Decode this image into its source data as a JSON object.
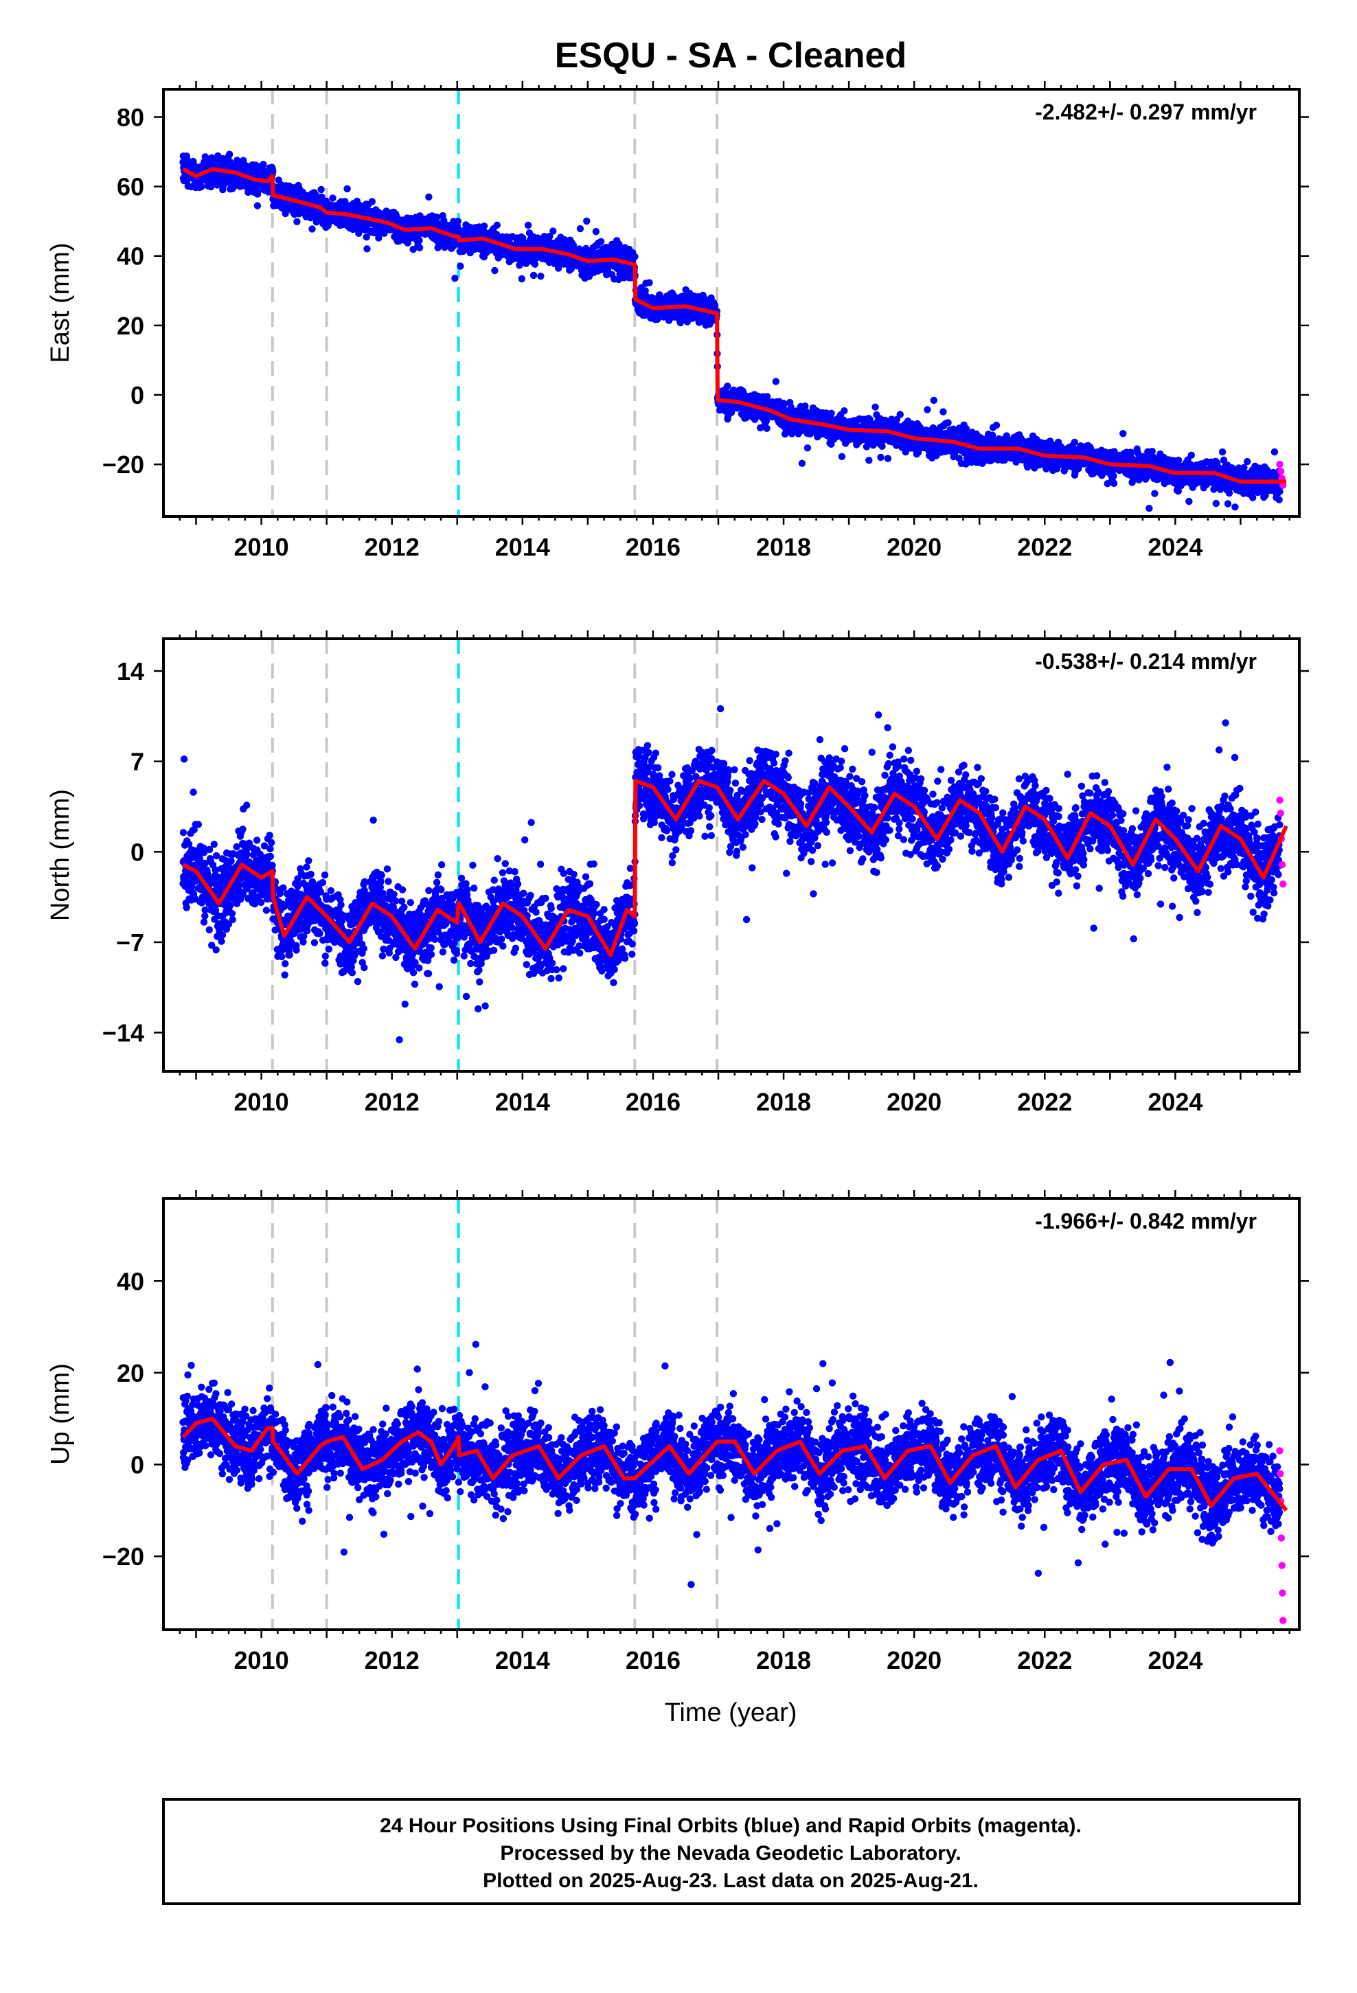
{
  "title": "ESQU  - SA - Cleaned",
  "xlabel": "Time (year)",
  "footer": {
    "line1": "24 Hour Positions Using Final Orbits (blue) and Rapid Orbits (magenta).",
    "line2": "Processed by the Nevada Geodetic Laboratory.",
    "line3": "Plotted on 2025-Aug-23. Last data on 2025-Aug-21."
  },
  "colors": {
    "final_orbits": "#0000ff",
    "rapid_orbits": "#ff00ff",
    "model": "#ff0000",
    "equipment_change": "#c8c8c8",
    "earthquake": "#00e5ee"
  },
  "chart_data": [
    {
      "type": "scatter",
      "ylabel": "East (mm)",
      "rate_label": "-2.482+/- 0.297 mm/yr",
      "xlim": [
        2008.5,
        2025.9
      ],
      "ylim": [
        -35,
        88
      ],
      "xticks": [
        "2010",
        "2012",
        "2014",
        "2016",
        "2018",
        "2020",
        "2022",
        "2024"
      ],
      "yticks": [
        80,
        60,
        40,
        20,
        0,
        -20
      ],
      "grid": false,
      "vlines_gray": [
        2010.17,
        2011.0,
        2015.72,
        2016.98
      ],
      "vlines_cyan": [
        2013.02
      ],
      "model": [
        [
          2008.8,
          65
        ],
        [
          2009.0,
          63
        ],
        [
          2009.25,
          65
        ],
        [
          2009.6,
          64
        ],
        [
          2009.9,
          62
        ],
        [
          2010.1,
          61.5
        ],
        [
          2010.17,
          63
        ],
        [
          2010.18,
          57.5
        ],
        [
          2010.5,
          56
        ],
        [
          2010.9,
          54
        ],
        [
          2011.0,
          52.5
        ],
        [
          2011.3,
          52
        ],
        [
          2011.7,
          50.5
        ],
        [
          2011.95,
          49.5
        ],
        [
          2012.2,
          47.5
        ],
        [
          2012.6,
          48
        ],
        [
          2012.9,
          46
        ],
        [
          2013.02,
          45.5
        ],
        [
          2013.03,
          44.5
        ],
        [
          2013.4,
          45
        ],
        [
          2013.9,
          42
        ],
        [
          2014.3,
          42
        ],
        [
          2014.7,
          40.5
        ],
        [
          2015.0,
          38.5
        ],
        [
          2015.4,
          39
        ],
        [
          2015.72,
          37.5
        ],
        [
          2015.73,
          27.5
        ],
        [
          2016.0,
          25
        ],
        [
          2016.5,
          25.5
        ],
        [
          2016.98,
          23.5
        ],
        [
          2016.99,
          -1.5
        ],
        [
          2017.3,
          -2
        ],
        [
          2017.8,
          -4.5
        ],
        [
          2018.1,
          -7
        ],
        [
          2018.6,
          -8.5
        ],
        [
          2019.0,
          -10
        ],
        [
          2019.6,
          -10.5
        ],
        [
          2020.0,
          -12.5
        ],
        [
          2020.6,
          -13.5
        ],
        [
          2021.0,
          -15.5
        ],
        [
          2021.6,
          -15.5
        ],
        [
          2022.0,
          -17.5
        ],
        [
          2022.6,
          -18
        ],
        [
          2023.0,
          -20
        ],
        [
          2023.6,
          -20.5
        ],
        [
          2024.0,
          -22.5
        ],
        [
          2024.6,
          -22.5
        ],
        [
          2025.0,
          -25
        ],
        [
          2025.7,
          -25
        ]
      ],
      "rapid_range": [
        2025.6,
        2025.65
      ],
      "rapid_values": [
        -20,
        -22,
        -24,
        -26
      ]
    },
    {
      "type": "scatter",
      "ylabel": "North (mm)",
      "rate_label": "-0.538+/- 0.214 mm/yr",
      "xlim": [
        2008.5,
        2025.9
      ],
      "ylim": [
        -17,
        16.5
      ],
      "xticks": [
        "2010",
        "2012",
        "2014",
        "2016",
        "2018",
        "2020",
        "2022",
        "2024"
      ],
      "yticks": [
        14,
        7,
        0,
        -7,
        -14
      ],
      "grid": false,
      "vlines_gray": [
        2010.17,
        2011.0,
        2015.72,
        2016.98
      ],
      "vlines_cyan": [
        2013.02
      ],
      "model": [
        [
          2008.8,
          -1
        ],
        [
          2009.0,
          -1.5
        ],
        [
          2009.35,
          -4
        ],
        [
          2009.7,
          -1
        ],
        [
          2010.0,
          -2
        ],
        [
          2010.17,
          -1.5
        ],
        [
          2010.18,
          -3.5
        ],
        [
          2010.35,
          -6.5
        ],
        [
          2010.7,
          -3.5
        ],
        [
          2011.0,
          -5
        ],
        [
          2011.35,
          -7
        ],
        [
          2011.7,
          -4
        ],
        [
          2012.0,
          -5
        ],
        [
          2012.35,
          -7.5
        ],
        [
          2012.7,
          -4.5
        ],
        [
          2013.0,
          -5.5
        ],
        [
          2013.02,
          -4
        ],
        [
          2013.03,
          -4
        ],
        [
          2013.35,
          -7
        ],
        [
          2013.7,
          -4
        ],
        [
          2014.0,
          -5
        ],
        [
          2014.35,
          -7.5
        ],
        [
          2014.7,
          -4.5
        ],
        [
          2015.0,
          -5
        ],
        [
          2015.35,
          -8
        ],
        [
          2015.6,
          -4.5
        ],
        [
          2015.72,
          -5
        ],
        [
          2015.73,
          5.5
        ],
        [
          2016.0,
          5
        ],
        [
          2016.35,
          2.5
        ],
        [
          2016.7,
          5.5
        ],
        [
          2016.98,
          5
        ],
        [
          2017.3,
          2.5
        ],
        [
          2017.7,
          5.5
        ],
        [
          2018.0,
          4.5
        ],
        [
          2018.35,
          2
        ],
        [
          2018.7,
          5
        ],
        [
          2019.0,
          3.5
        ],
        [
          2019.35,
          1.5
        ],
        [
          2019.7,
          4.5
        ],
        [
          2020.0,
          3.5
        ],
        [
          2020.35,
          1
        ],
        [
          2020.7,
          4
        ],
        [
          2021.0,
          3
        ],
        [
          2021.35,
          0
        ],
        [
          2021.7,
          3.5
        ],
        [
          2022.0,
          2.5
        ],
        [
          2022.35,
          -0.5
        ],
        [
          2022.7,
          3
        ],
        [
          2023.0,
          2
        ],
        [
          2023.35,
          -1
        ],
        [
          2023.7,
          2.5
        ],
        [
          2024.0,
          1
        ],
        [
          2024.35,
          -1.5
        ],
        [
          2024.7,
          2
        ],
        [
          2025.0,
          1
        ],
        [
          2025.35,
          -2
        ],
        [
          2025.7,
          2
        ]
      ],
      "rapid_range": [
        2025.6,
        2025.65
      ],
      "rapid_values": [
        4,
        3,
        1,
        -1,
        -2.5
      ]
    },
    {
      "type": "scatter",
      "ylabel": "Up (mm)",
      "rate_label": "-1.966+/- 0.842 mm/yr",
      "xlim": [
        2008.5,
        2025.9
      ],
      "ylim": [
        -36,
        58
      ],
      "xticks": [
        "2010",
        "2012",
        "2014",
        "2016",
        "2018",
        "2020",
        "2022",
        "2024"
      ],
      "yticks": [
        40,
        20,
        0,
        -20
      ],
      "grid": false,
      "vlines_gray": [
        2010.17,
        2011.0,
        2015.72,
        2016.98
      ],
      "vlines_cyan": [
        2013.02
      ],
      "model": [
        [
          2008.8,
          6
        ],
        [
          2009.0,
          9
        ],
        [
          2009.25,
          10
        ],
        [
          2009.6,
          4
        ],
        [
          2009.85,
          3
        ],
        [
          2010.1,
          8
        ],
        [
          2010.17,
          8
        ],
        [
          2010.18,
          5
        ],
        [
          2010.55,
          -2
        ],
        [
          2010.9,
          4
        ],
        [
          2011.0,
          5
        ],
        [
          2011.25,
          6
        ],
        [
          2011.55,
          -1
        ],
        [
          2011.85,
          1
        ],
        [
          2012.15,
          5
        ],
        [
          2012.4,
          7
        ],
        [
          2012.6,
          5
        ],
        [
          2012.75,
          0
        ],
        [
          2012.95,
          4
        ],
        [
          2013.02,
          6
        ],
        [
          2013.03,
          2
        ],
        [
          2013.3,
          3
        ],
        [
          2013.55,
          -3
        ],
        [
          2013.85,
          2
        ],
        [
          2014.25,
          4
        ],
        [
          2014.55,
          -3
        ],
        [
          2014.9,
          2
        ],
        [
          2015.25,
          4
        ],
        [
          2015.55,
          -3
        ],
        [
          2015.72,
          -3
        ],
        [
          2016.25,
          4
        ],
        [
          2016.55,
          -2
        ],
        [
          2016.98,
          5
        ],
        [
          2017.25,
          5
        ],
        [
          2017.55,
          -2
        ],
        [
          2017.9,
          3
        ],
        [
          2018.25,
          5
        ],
        [
          2018.55,
          -2
        ],
        [
          2018.9,
          3
        ],
        [
          2019.25,
          4
        ],
        [
          2019.55,
          -3
        ],
        [
          2019.9,
          3
        ],
        [
          2020.25,
          4
        ],
        [
          2020.55,
          -4
        ],
        [
          2020.9,
          2
        ],
        [
          2021.25,
          4
        ],
        [
          2021.55,
          -5
        ],
        [
          2021.9,
          1
        ],
        [
          2022.25,
          3
        ],
        [
          2022.55,
          -6
        ],
        [
          2022.9,
          0
        ],
        [
          2023.25,
          1
        ],
        [
          2023.55,
          -7
        ],
        [
          2023.9,
          -1
        ],
        [
          2024.25,
          -1
        ],
        [
          2024.55,
          -9
        ],
        [
          2024.9,
          -3
        ],
        [
          2025.25,
          -2
        ],
        [
          2025.7,
          -10
        ]
      ],
      "rapid_range": [
        2025.6,
        2025.65
      ],
      "rapid_values": [
        3,
        -2,
        -8,
        -16,
        -22,
        -28,
        -34
      ]
    }
  ]
}
